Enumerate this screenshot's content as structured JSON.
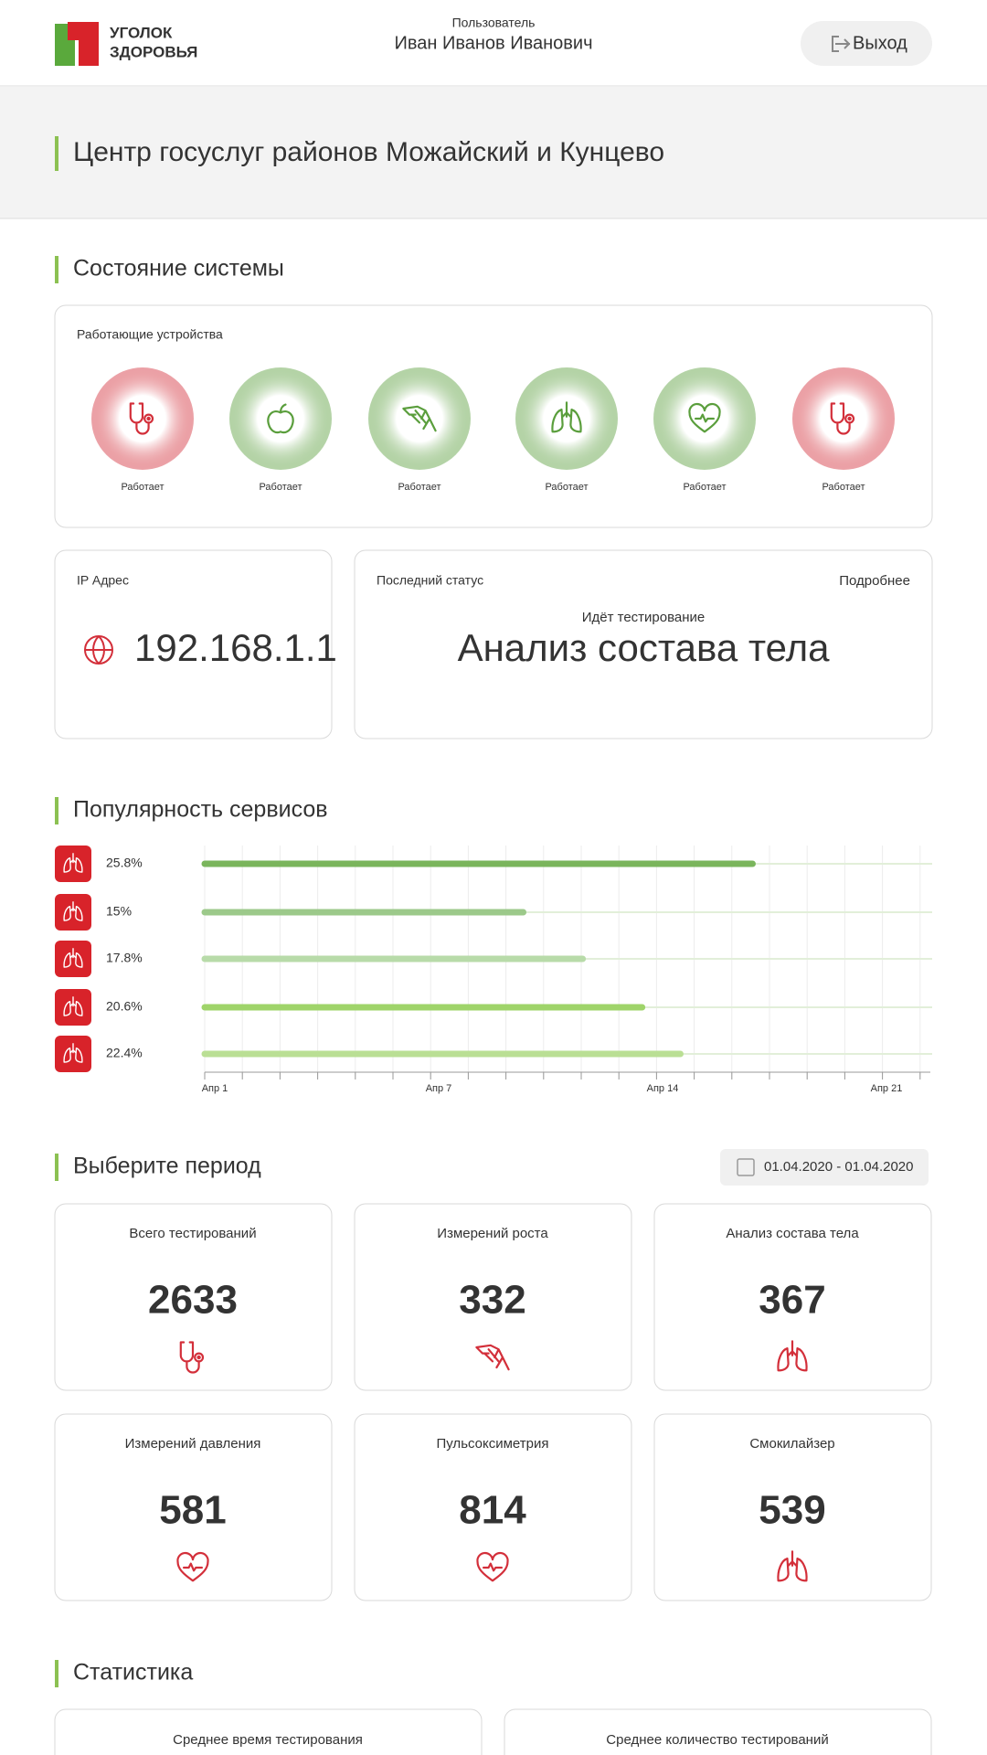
{
  "header": {
    "brand_line1": "УГОЛОК",
    "brand_line2": "ЗДОРОВЬЯ",
    "user_label": "Пользователь",
    "user_name": "Иван Иванов Иванович",
    "logout": "Выход"
  },
  "banner": {
    "title": "Центр госуслуг районов Можайский и Кунцево"
  },
  "system": {
    "title": "Состояние системы",
    "devices_label": "Работающие устройства",
    "devices": [
      {
        "status": "Работает",
        "color": "#d32f3a"
      },
      {
        "status": "Работает",
        "color": "#5a9e3c"
      },
      {
        "status": "Работает",
        "color": "#5a9e3c"
      },
      {
        "status": "Работает",
        "color": "#5a9e3c"
      },
      {
        "status": "Работает",
        "color": "#5a9e3c"
      },
      {
        "status": "Работает",
        "color": "#d32f3a"
      }
    ]
  },
  "ip": {
    "label": "IP Адрес",
    "value": "192.168.1.1"
  },
  "status": {
    "label": "Последний статус",
    "link": "Подробнее",
    "caption": "Идёт тестирование",
    "value": "Анализ состава тела"
  },
  "popularity_title": "Популярность сервисов",
  "chart_data": {
    "type": "bar",
    "values": [
      25.8,
      15,
      17.8,
      20.6,
      22.4
    ],
    "value_labels": [
      "25.8%",
      "15%",
      "17.8%",
      "20.6%",
      "22.4%"
    ],
    "colors": [
      "#7ab55c",
      "#9cc98a",
      "#b8dba9",
      "#9fd46a",
      "#badf94"
    ],
    "xlim": [
      0,
      34
    ],
    "grid": true,
    "xtick_labels": [
      "Апр 1",
      "Апр 7",
      "Апр 14",
      "Апр 21"
    ]
  },
  "period": {
    "title": "Выберите период",
    "date_range": "01.04.2020 - 01.04.2020"
  },
  "metrics": [
    {
      "label": "Всего тестирований",
      "value": 2633
    },
    {
      "label": "Измерений роста",
      "value": 332
    },
    {
      "label": "Анализ состава тела",
      "value": 367
    },
    {
      "label": "Измерений давления",
      "value": 581
    },
    {
      "label": "Пульсоксиметрия",
      "value": 814
    },
    {
      "label": "Смокилайзер",
      "value": 539
    }
  ],
  "statistics": {
    "title": "Статистика",
    "cards": [
      "Среднее время тестирования",
      "Среднее количество тестирований"
    ]
  }
}
